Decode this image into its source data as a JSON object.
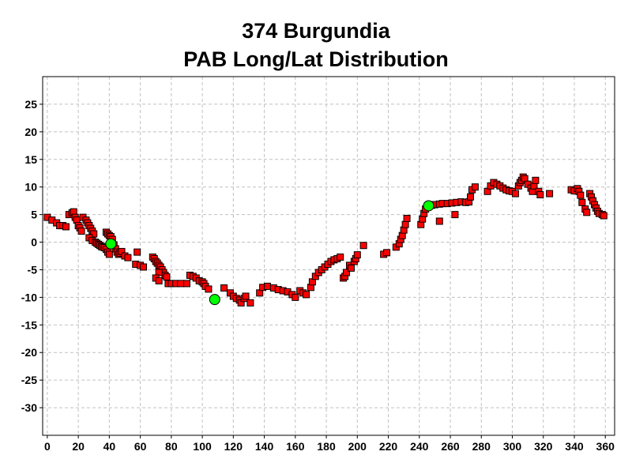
{
  "chart_data": {
    "type": "scatter",
    "title": "374 Burgundia",
    "subtitle": "PAB Long/Lat Distribution",
    "xlabel": "",
    "ylabel": "",
    "xlim": [
      -3,
      366
    ],
    "ylim": [
      -35,
      30
    ],
    "x_ticks": [
      "0",
      "20",
      "40",
      "60",
      "80",
      "100",
      "120",
      "140",
      "160",
      "180",
      "200",
      "220",
      "240",
      "260",
      "280",
      "300",
      "320",
      "340",
      "360"
    ],
    "y_ticks": [
      "25",
      "20",
      "15",
      "10",
      "5",
      "0",
      "-5",
      "-10",
      "-15",
      "-20",
      "-25",
      "-30"
    ],
    "grid": true,
    "legend": "none",
    "series": [
      {
        "marker": "square",
        "color": "#ff0000",
        "points": [
          [
            0,
            4.5
          ],
          [
            3,
            4
          ],
          [
            6,
            3.5
          ],
          [
            8,
            3
          ],
          [
            10,
            3
          ],
          [
            12,
            2.8
          ],
          [
            14,
            5
          ],
          [
            16,
            5.3
          ],
          [
            17,
            5.5
          ],
          [
            18,
            4.5
          ],
          [
            19,
            4
          ],
          [
            20,
            3
          ],
          [
            21,
            2.6
          ],
          [
            22,
            2
          ],
          [
            23,
            4.5
          ],
          [
            25,
            4
          ],
          [
            26,
            3.5
          ],
          [
            27,
            3
          ],
          [
            28,
            2.5
          ],
          [
            29,
            2
          ],
          [
            30,
            1.5
          ],
          [
            27,
            0.8
          ],
          [
            29,
            0.3
          ],
          [
            31,
            0
          ],
          [
            32,
            -0.2
          ],
          [
            33,
            -0.4
          ],
          [
            34,
            -0.6
          ],
          [
            35,
            -0.8
          ],
          [
            36,
            -0.9
          ],
          [
            37,
            -1
          ],
          [
            38,
            -1.3
          ],
          [
            39,
            -1.8
          ],
          [
            40,
            -2.2
          ],
          [
            38,
            1.8
          ],
          [
            39,
            1.5
          ],
          [
            40,
            1.2
          ],
          [
            41,
            1
          ],
          [
            42,
            0.5
          ],
          [
            43,
            -0.5
          ],
          [
            44,
            -1.2
          ],
          [
            45,
            -1.8
          ],
          [
            46,
            -2.2
          ],
          [
            47,
            -2
          ],
          [
            48,
            -1.7
          ],
          [
            50,
            -2.5
          ],
          [
            52,
            -2.8
          ],
          [
            57,
            -4
          ],
          [
            60,
            -4.2
          ],
          [
            58,
            -1.8
          ],
          [
            62,
            -4.5
          ],
          [
            68,
            -2.7
          ],
          [
            69,
            -3
          ],
          [
            70,
            -3.5
          ],
          [
            71,
            -3.8
          ],
          [
            72,
            -4.2
          ],
          [
            73,
            -4.5
          ],
          [
            74,
            -5
          ],
          [
            75,
            -5.5
          ],
          [
            76,
            -6
          ],
          [
            77,
            -6.3
          ],
          [
            72,
            -5.5
          ],
          [
            70,
            -6.5
          ],
          [
            72,
            -7
          ],
          [
            78,
            -7.5
          ],
          [
            80,
            -7.5
          ],
          [
            83,
            -7.5
          ],
          [
            86,
            -7.5
          ],
          [
            90,
            -7.5
          ],
          [
            92,
            -6
          ],
          [
            94,
            -6.2
          ],
          [
            96,
            -6.5
          ],
          [
            98,
            -7
          ],
          [
            100,
            -7.2
          ],
          [
            101,
            -7.5
          ],
          [
            102,
            -8
          ],
          [
            104,
            -8.5
          ],
          [
            114,
            -8.3
          ],
          [
            118,
            -9.2
          ],
          [
            120,
            -9.8
          ],
          [
            122,
            -10.2
          ],
          [
            124,
            -10.5
          ],
          [
            125,
            -11
          ],
          [
            127,
            -10.2
          ],
          [
            128,
            -9.8
          ],
          [
            131,
            -11
          ],
          [
            137,
            -9.2
          ],
          [
            139,
            -8.2
          ],
          [
            142,
            -8
          ],
          [
            146,
            -8.3
          ],
          [
            149,
            -8.6
          ],
          [
            152,
            -8.8
          ],
          [
            155,
            -9
          ],
          [
            158,
            -9.5
          ],
          [
            160,
            -10
          ],
          [
            163,
            -8.8
          ],
          [
            165,
            -9.2
          ],
          [
            167,
            -9.5
          ],
          [
            170,
            -8.2
          ],
          [
            171,
            -7.2
          ],
          [
            173,
            -6.2
          ],
          [
            175,
            -5.5
          ],
          [
            177,
            -5
          ],
          [
            179,
            -4.5
          ],
          [
            181,
            -4
          ],
          [
            183,
            -3.5
          ],
          [
            185,
            -3.2
          ],
          [
            187,
            -3
          ],
          [
            189,
            -2.7
          ],
          [
            191,
            -6.5
          ],
          [
            192,
            -6.2
          ],
          [
            193,
            -5.5
          ],
          [
            195,
            -4.2
          ],
          [
            196,
            -4.7
          ],
          [
            198,
            -3.5
          ],
          [
            199,
            -3
          ],
          [
            200,
            -2.3
          ],
          [
            204,
            -0.6
          ],
          [
            217,
            -2.2
          ],
          [
            219,
            -1.9
          ],
          [
            225,
            -0.9
          ],
          [
            227,
            -0.3
          ],
          [
            228,
            0.5
          ],
          [
            229,
            1.2
          ],
          [
            230,
            2.2
          ],
          [
            231,
            3.2
          ],
          [
            232,
            4.3
          ],
          [
            241,
            3.2
          ],
          [
            242,
            4.2
          ],
          [
            243,
            5.2
          ],
          [
            244,
            6
          ],
          [
            246,
            6.5
          ],
          [
            248,
            6.7
          ],
          [
            250,
            6.8
          ],
          [
            253,
            6.9
          ],
          [
            255,
            7
          ],
          [
            258,
            7
          ],
          [
            261,
            7.1
          ],
          [
            264,
            7.2
          ],
          [
            267,
            7.3
          ],
          [
            270,
            7.2
          ],
          [
            272,
            7.3
          ],
          [
            273,
            8.2
          ],
          [
            274,
            9.5
          ],
          [
            276,
            10
          ],
          [
            263,
            5
          ],
          [
            253,
            3.8
          ],
          [
            284,
            9.2
          ],
          [
            286,
            10.2
          ],
          [
            288,
            10.8
          ],
          [
            290,
            10.5
          ],
          [
            292,
            10.2
          ],
          [
            294,
            9.8
          ],
          [
            296,
            9.5
          ],
          [
            298,
            9.3
          ],
          [
            300,
            9.2
          ],
          [
            302,
            8.8
          ],
          [
            304,
            10.2
          ],
          [
            305,
            10.8
          ],
          [
            306,
            11.2
          ],
          [
            307,
            11.8
          ],
          [
            308,
            11.5
          ],
          [
            310,
            10.5
          ],
          [
            312,
            9.8
          ],
          [
            313,
            9.2
          ],
          [
            314,
            10.2
          ],
          [
            315,
            11.2
          ],
          [
            317,
            9.2
          ],
          [
            318,
            8.6
          ],
          [
            324,
            8.8
          ],
          [
            338,
            9.5
          ],
          [
            340,
            9.3
          ],
          [
            342,
            9.7
          ],
          [
            343,
            9.2
          ],
          [
            344,
            8.5
          ],
          [
            345,
            7.2
          ],
          [
            347,
            6
          ],
          [
            348,
            5.4
          ],
          [
            350,
            8.8
          ],
          [
            351,
            8.2
          ],
          [
            352,
            7.5
          ],
          [
            353,
            6.8
          ],
          [
            354,
            6.2
          ],
          [
            355,
            5.6
          ],
          [
            356,
            5.2
          ],
          [
            358,
            5
          ],
          [
            359,
            4.8
          ]
        ]
      },
      {
        "marker": "circle",
        "color": "#00ff00",
        "points": [
          [
            41,
            -0.3
          ],
          [
            108,
            -10.4
          ],
          [
            246,
            6.6
          ]
        ]
      }
    ]
  }
}
